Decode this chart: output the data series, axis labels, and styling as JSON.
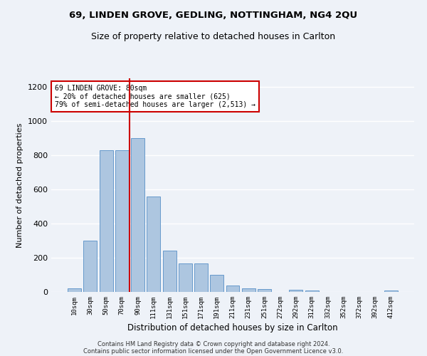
{
  "title1": "69, LINDEN GROVE, GEDLING, NOTTINGHAM, NG4 2QU",
  "title2": "Size of property relative to detached houses in Carlton",
  "xlabel": "Distribution of detached houses by size in Carlton",
  "ylabel": "Number of detached properties",
  "categories": [
    "10sqm",
    "30sqm",
    "50sqm",
    "70sqm",
    "90sqm",
    "111sqm",
    "131sqm",
    "151sqm",
    "171sqm",
    "191sqm",
    "211sqm",
    "231sqm",
    "251sqm",
    "272sqm",
    "292sqm",
    "312sqm",
    "332sqm",
    "352sqm",
    "372sqm",
    "392sqm",
    "412sqm"
  ],
  "values": [
    20,
    300,
    830,
    830,
    900,
    560,
    240,
    165,
    165,
    100,
    38,
    20,
    15,
    0,
    12,
    10,
    0,
    0,
    0,
    0,
    8
  ],
  "bar_color": "#adc6e0",
  "bar_edge_color": "#6699cc",
  "vline_color": "#cc0000",
  "annotation_text": "69 LINDEN GROVE: 80sqm\n← 20% of detached houses are smaller (625)\n79% of semi-detached houses are larger (2,513) →",
  "annotation_box_color": "#ffffff",
  "annotation_box_edge": "#cc0000",
  "ylim": [
    0,
    1250
  ],
  "yticks": [
    0,
    200,
    400,
    600,
    800,
    1000,
    1200
  ],
  "footer1": "Contains HM Land Registry data © Crown copyright and database right 2024.",
  "footer2": "Contains public sector information licensed under the Open Government Licence v3.0.",
  "bg_color": "#eef2f8",
  "plot_bg_color": "#eef2f8",
  "grid_color": "#ffffff",
  "title1_fontsize": 9.5,
  "title2_fontsize": 9
}
